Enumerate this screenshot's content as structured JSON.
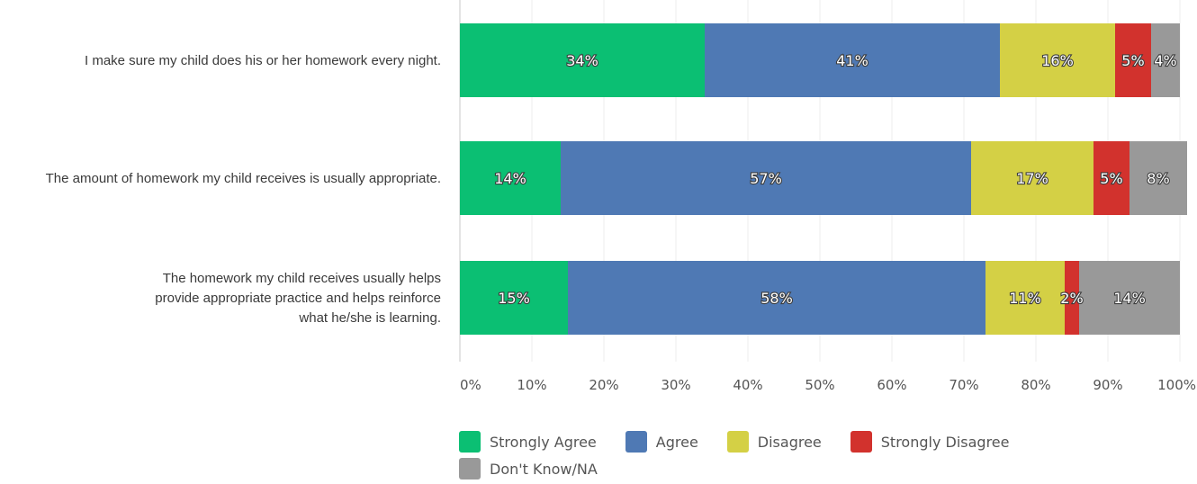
{
  "chart_data": {
    "type": "bar",
    "orientation": "horizontal",
    "stacked": true,
    "categories": [
      [
        "I make sure my child does his or her homework every night."
      ],
      [
        "The amount of homework my child receives is usually appropriate."
      ],
      [
        "The homework my child receives usually helps",
        "provide appropriate practice and helps reinforce",
        "what he/she is learning."
      ]
    ],
    "series": [
      {
        "name": "Strongly Agree",
        "color": "#0bbf73",
        "values": [
          34,
          14,
          15
        ],
        "labels": [
          "34%",
          "14%",
          "15%"
        ]
      },
      {
        "name": "Agree",
        "color": "#4f79b4",
        "values": [
          41,
          57,
          58
        ],
        "labels": [
          "41%",
          "57%",
          "58%"
        ]
      },
      {
        "name": "Disagree",
        "color": "#d4d045",
        "values": [
          16,
          17,
          11
        ],
        "labels": [
          "16%",
          "17%",
          "11%"
        ]
      },
      {
        "name": "Strongly Disagree",
        "color": "#d2322d",
        "values": [
          5,
          5,
          2
        ],
        "labels": [
          "5%",
          "5%",
          "2%"
        ]
      },
      {
        "name": "Don't Know/NA",
        "color": "#999999",
        "values": [
          4,
          8,
          14
        ],
        "labels": [
          "4%",
          "8%",
          "14%"
        ]
      }
    ],
    "xlim": [
      0,
      100
    ],
    "xticks": [
      "0%",
      "10%",
      "20%",
      "30%",
      "40%",
      "50%",
      "60%",
      "70%",
      "80%",
      "90%",
      "100%"
    ],
    "grid": true,
    "legend_position": "bottom"
  }
}
